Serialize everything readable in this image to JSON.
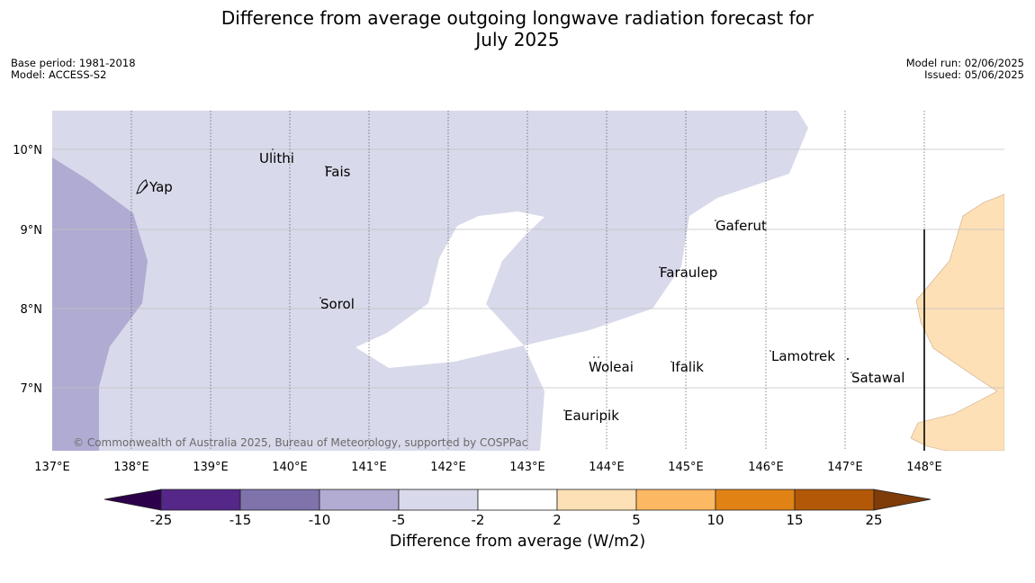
{
  "title_line1": "Difference from average outgoing longwave radiation forecast for",
  "title_line2": "July 2025",
  "meta_left": {
    "base_period": "Base period: 1981-2018",
    "model": "Model: ACCESS-S2"
  },
  "meta_right": {
    "model_run": "Model run: 02/06/2025",
    "issued": "Issued: 05/06/2025"
  },
  "map": {
    "lon_labels": [
      "137°E",
      "138°E",
      "139°E",
      "140°E",
      "141°E",
      "142°E",
      "143°E",
      "144°E",
      "145°E",
      "146°E",
      "147°E",
      "148°E"
    ],
    "lat_labels": [
      "10°N",
      "9°N",
      "8°N",
      "7°N"
    ],
    "places": [
      {
        "name": "Ulithi"
      },
      {
        "name": "Fais"
      },
      {
        "name": "Yap"
      },
      {
        "name": "Gaferut"
      },
      {
        "name": "Faraulep"
      },
      {
        "name": "Sorol"
      },
      {
        "name": "Woleai"
      },
      {
        "name": "Ifalik"
      },
      {
        "name": "Lamotrek"
      },
      {
        "name": "Satawal"
      },
      {
        "name": "Eauripik"
      }
    ],
    "copyright": "© Commonwealth of Australia 2025, Bureau of Meteorology, supported by COSPPac",
    "colors": {
      "minus10_to_minus5": "#b0abd2",
      "minus5_to_minus2": "#d8d9ea",
      "plus2_to_plus5": "#fee0b6"
    }
  },
  "colorbar": {
    "title": "Difference from average (W/m2)",
    "ticks": [
      "-25",
      "-15",
      "-10",
      "-5",
      "-2",
      "2",
      "5",
      "10",
      "15",
      "25"
    ],
    "colors": [
      "#542788",
      "#8073ac",
      "#b2abd2",
      "#d8daeb",
      "#ffffff",
      "#fee0b6",
      "#fdb863",
      "#e08214",
      "#b35806"
    ],
    "extend_low": "#2d004b",
    "extend_high": "#7f3b08"
  }
}
